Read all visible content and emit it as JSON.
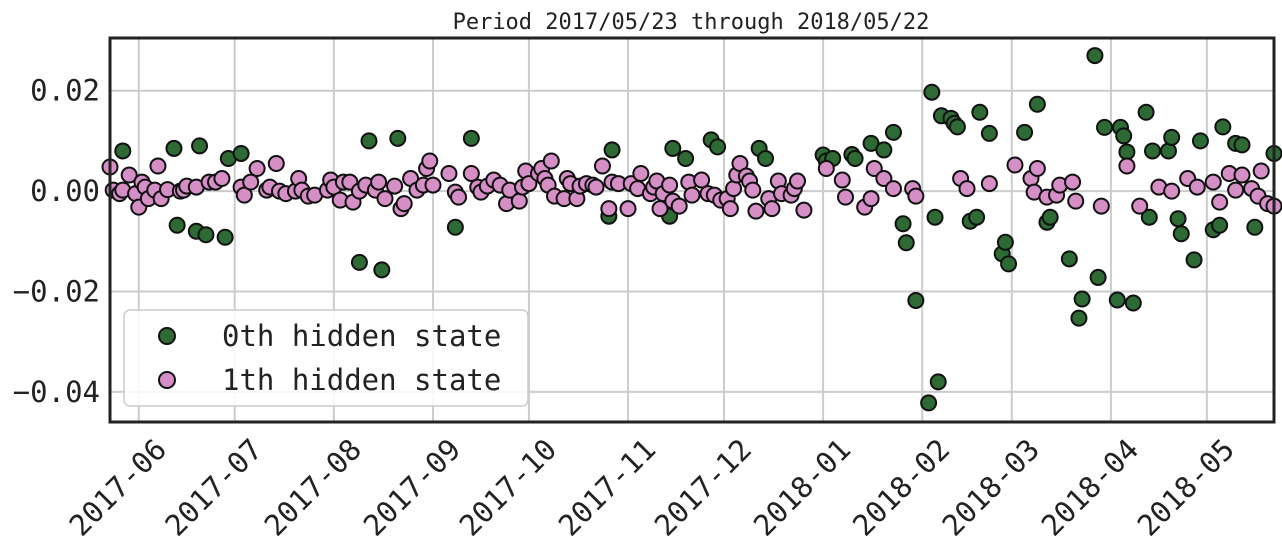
{
  "chart_data": {
    "type": "scatter",
    "title": "Period 2017/05/23 through 2018/05/22",
    "xlabel": "",
    "ylabel": "",
    "xlim": [
      "2017-05-23",
      "2018-05-22"
    ],
    "ylim": [
      -0.046,
      0.0305
    ],
    "grid": true,
    "legend_position": "lower-left",
    "x_ticks": [
      "2017-06-01",
      "2017-07-01",
      "2017-08-01",
      "2017-09-01",
      "2017-10-01",
      "2017-11-01",
      "2017-12-01",
      "2018-01-01",
      "2018-02-01",
      "2018-03-01",
      "2018-04-01",
      "2018-05-01"
    ],
    "x_tick_labels": [
      "2017-06",
      "2017-07",
      "2017-08",
      "2017-09",
      "2017-10",
      "2017-11",
      "2017-12",
      "2018-01",
      "2018-02",
      "2018-03",
      "2018-04",
      "2018-05"
    ],
    "y_ticks": [
      0.02,
      0.0,
      -0.02,
      -0.04
    ],
    "y_tick_labels": [
      "0.02",
      "0.00",
      "−0.02",
      "−0.04"
    ],
    "series": [
      {
        "name": "0th hidden state",
        "color": "#2d6a34",
        "points": [
          [
            "2017-05-27",
            0.008
          ],
          [
            "2017-06-12",
            0.0085
          ],
          [
            "2017-06-13",
            -0.0068
          ],
          [
            "2017-06-19",
            -0.008
          ],
          [
            "2017-06-20",
            0.009
          ],
          [
            "2017-06-22",
            -0.0087
          ],
          [
            "2017-06-28",
            -0.0092
          ],
          [
            "2017-06-29",
            0.0065
          ],
          [
            "2017-07-03",
            0.0075
          ],
          [
            "2017-08-09",
            -0.0142
          ],
          [
            "2017-08-12",
            0.01
          ],
          [
            "2017-08-16",
            -0.0157
          ],
          [
            "2017-08-21",
            0.0105
          ],
          [
            "2017-09-08",
            -0.0072
          ],
          [
            "2017-09-13",
            0.0105
          ],
          [
            "2017-10-26",
            -0.005
          ],
          [
            "2017-10-27",
            0.0082
          ],
          [
            "2017-11-14",
            -0.005
          ],
          [
            "2017-11-15",
            0.0085
          ],
          [
            "2017-11-19",
            0.0065
          ],
          [
            "2017-11-27",
            0.0102
          ],
          [
            "2017-11-29",
            0.0088
          ],
          [
            "2017-12-12",
            0.0085
          ],
          [
            "2017-12-14",
            0.0065
          ],
          [
            "2018-01-01",
            0.0072
          ],
          [
            "2018-01-02",
            0.006
          ],
          [
            "2018-01-04",
            0.0065
          ],
          [
            "2018-01-10",
            0.0073
          ],
          [
            "2018-01-11",
            0.0065
          ],
          [
            "2018-01-16",
            0.0095
          ],
          [
            "2018-01-20",
            0.0082
          ],
          [
            "2018-01-23",
            0.0117
          ],
          [
            "2018-01-26",
            -0.0065
          ],
          [
            "2018-01-27",
            -0.0103
          ],
          [
            "2018-01-30",
            -0.0218
          ],
          [
            "2018-02-03",
            -0.0422
          ],
          [
            "2018-02-04",
            0.0197
          ],
          [
            "2018-02-05",
            -0.0052
          ],
          [
            "2018-02-06",
            -0.038
          ],
          [
            "2018-02-07",
            0.015
          ],
          [
            "2018-02-10",
            0.0145
          ],
          [
            "2018-02-11",
            0.0135
          ],
          [
            "2018-02-12",
            0.0128
          ],
          [
            "2018-02-16",
            -0.006
          ],
          [
            "2018-02-18",
            -0.0052
          ],
          [
            "2018-02-19",
            0.0157
          ],
          [
            "2018-02-22",
            0.0115
          ],
          [
            "2018-02-26",
            -0.0125
          ],
          [
            "2018-02-27",
            -0.0102
          ],
          [
            "2018-02-28",
            -0.0145
          ],
          [
            "2018-03-05",
            0.0117
          ],
          [
            "2018-03-09",
            0.0173
          ],
          [
            "2018-03-12",
            -0.0062
          ],
          [
            "2018-03-13",
            -0.0052
          ],
          [
            "2018-03-19",
            -0.0135
          ],
          [
            "2018-03-22",
            -0.0253
          ],
          [
            "2018-03-23",
            -0.0215
          ],
          [
            "2018-03-27",
            0.027
          ],
          [
            "2018-03-28",
            -0.0172
          ],
          [
            "2018-03-30",
            0.0127
          ],
          [
            "2018-04-03",
            -0.0217
          ],
          [
            "2018-04-04",
            0.0127
          ],
          [
            "2018-04-05",
            0.011
          ],
          [
            "2018-04-06",
            0.0078
          ],
          [
            "2018-04-08",
            -0.0223
          ],
          [
            "2018-04-12",
            0.0157
          ],
          [
            "2018-04-13",
            -0.0052
          ],
          [
            "2018-04-14",
            0.008
          ],
          [
            "2018-04-19",
            0.008
          ],
          [
            "2018-04-20",
            0.0107
          ],
          [
            "2018-04-22",
            -0.0055
          ],
          [
            "2018-04-23",
            -0.0085
          ],
          [
            "2018-04-27",
            -0.0137
          ],
          [
            "2018-04-29",
            0.01
          ],
          [
            "2018-05-03",
            -0.0077
          ],
          [
            "2018-05-05",
            -0.0068
          ],
          [
            "2018-05-06",
            0.0128
          ],
          [
            "2018-05-10",
            0.0095
          ],
          [
            "2018-05-12",
            0.0092
          ],
          [
            "2018-05-16",
            -0.0072
          ],
          [
            "2018-05-22",
            0.0075
          ]
        ]
      },
      {
        "name": "1th hidden state",
        "color": "#d68fc6",
        "points": [
          [
            "2017-05-23",
            0.0048
          ],
          [
            "2017-05-24",
            0.0002
          ],
          [
            "2017-05-26",
            -0.0005
          ],
          [
            "2017-05-27",
            0.0002
          ],
          [
            "2017-05-29",
            0.0032
          ],
          [
            "2017-05-31",
            -0.0005
          ],
          [
            "2017-06-01",
            -0.0032
          ],
          [
            "2017-06-02",
            0.0018
          ],
          [
            "2017-06-03",
            0.0008
          ],
          [
            "2017-06-04",
            -0.0015
          ],
          [
            "2017-06-06",
            0.0002
          ],
          [
            "2017-06-07",
            0.005
          ],
          [
            "2017-06-08",
            -0.0015
          ],
          [
            "2017-06-10",
            0.0003
          ],
          [
            "2017-06-14",
            0.0
          ],
          [
            "2017-06-15",
            0.0002
          ],
          [
            "2017-06-16",
            0.001
          ],
          [
            "2017-06-19",
            0.0008
          ],
          [
            "2017-06-23",
            0.0018
          ],
          [
            "2017-06-25",
            0.0018
          ],
          [
            "2017-06-27",
            0.0025
          ],
          [
            "2017-07-03",
            0.0008
          ],
          [
            "2017-07-04",
            -0.0008
          ],
          [
            "2017-07-06",
            0.0018
          ],
          [
            "2017-07-08",
            0.0045
          ],
          [
            "2017-07-11",
            0.0002
          ],
          [
            "2017-07-12",
            0.0008
          ],
          [
            "2017-07-14",
            0.0055
          ],
          [
            "2017-07-15",
            0.0
          ],
          [
            "2017-07-17",
            -0.0005
          ],
          [
            "2017-07-20",
            0.0
          ],
          [
            "2017-07-21",
            0.0025
          ],
          [
            "2017-07-22",
            0.0002
          ],
          [
            "2017-07-24",
            -0.001
          ],
          [
            "2017-07-26",
            -0.0008
          ],
          [
            "2017-07-30",
            0.0002
          ],
          [
            "2017-07-31",
            0.0022
          ],
          [
            "2017-08-01",
            0.0008
          ],
          [
            "2017-08-03",
            -0.0018
          ],
          [
            "2017-08-04",
            0.0018
          ],
          [
            "2017-08-06",
            0.0018
          ],
          [
            "2017-08-07",
            -0.0022
          ],
          [
            "2017-08-09",
            0.0
          ],
          [
            "2017-08-11",
            0.0012
          ],
          [
            "2017-08-14",
            0.0002
          ],
          [
            "2017-08-15",
            0.0018
          ],
          [
            "2017-08-17",
            -0.0015
          ],
          [
            "2017-08-20",
            0.001
          ],
          [
            "2017-08-22",
            -0.0035
          ],
          [
            "2017-08-23",
            -0.0025
          ],
          [
            "2017-08-25",
            0.0025
          ],
          [
            "2017-08-27",
            0.0002
          ],
          [
            "2017-08-29",
            0.0012
          ],
          [
            "2017-08-30",
            0.0045
          ],
          [
            "2017-08-31",
            0.006
          ],
          [
            "2017-09-01",
            0.0012
          ],
          [
            "2017-09-06",
            0.0035
          ],
          [
            "2017-09-08",
            -0.0002
          ],
          [
            "2017-09-09",
            -0.0012
          ],
          [
            "2017-09-13",
            0.0035
          ],
          [
            "2017-09-15",
            0.0008
          ],
          [
            "2017-09-16",
            -0.0002
          ],
          [
            "2017-09-18",
            0.001
          ],
          [
            "2017-09-20",
            0.0022
          ],
          [
            "2017-09-22",
            0.0012
          ],
          [
            "2017-09-24",
            -0.0025
          ],
          [
            "2017-09-25",
            0.0002
          ],
          [
            "2017-09-28",
            -0.002
          ],
          [
            "2017-09-29",
            0.0008
          ],
          [
            "2017-09-30",
            0.004
          ],
          [
            "2017-10-01",
            0.0015
          ],
          [
            "2017-10-04",
            0.0035
          ],
          [
            "2017-10-05",
            0.0045
          ],
          [
            "2017-10-06",
            0.0025
          ],
          [
            "2017-10-07",
            0.0012
          ],
          [
            "2017-10-08",
            0.006
          ],
          [
            "2017-10-09",
            -0.001
          ],
          [
            "2017-10-12",
            -0.0015
          ],
          [
            "2017-10-13",
            0.0025
          ],
          [
            "2017-10-14",
            0.0015
          ],
          [
            "2017-10-16",
            -0.0015
          ],
          [
            "2017-10-17",
            0.001
          ],
          [
            "2017-10-19",
            0.0015
          ],
          [
            "2017-10-21",
            0.0012
          ],
          [
            "2017-10-22",
            0.0008
          ],
          [
            "2017-10-24",
            0.005
          ],
          [
            "2017-10-26",
            -0.0035
          ],
          [
            "2017-10-27",
            0.0018
          ],
          [
            "2017-10-29",
            0.0015
          ],
          [
            "2017-11-01",
            -0.0035
          ],
          [
            "2017-11-02",
            0.0015
          ],
          [
            "2017-11-04",
            0.0005
          ],
          [
            "2017-11-05",
            0.0035
          ],
          [
            "2017-11-08",
            -0.0005
          ],
          [
            "2017-11-09",
            0.0008
          ],
          [
            "2017-11-10",
            0.002
          ],
          [
            "2017-11-11",
            -0.0035
          ],
          [
            "2017-11-12",
            -0.0005
          ],
          [
            "2017-11-14",
            0.0012
          ],
          [
            "2017-11-15",
            -0.002
          ],
          [
            "2017-11-17",
            -0.003
          ],
          [
            "2017-11-20",
            0.0018
          ],
          [
            "2017-11-21",
            -0.0008
          ],
          [
            "2017-11-24",
            0.0022
          ],
          [
            "2017-11-26",
            -0.0005
          ],
          [
            "2017-11-28",
            -0.0008
          ],
          [
            "2017-11-30",
            -0.0018
          ],
          [
            "2017-12-02",
            -0.0015
          ],
          [
            "2017-12-03",
            -0.0035
          ],
          [
            "2017-12-04",
            0.0005
          ],
          [
            "2017-12-05",
            0.0032
          ],
          [
            "2017-12-06",
            0.0055
          ],
          [
            "2017-12-08",
            0.003
          ],
          [
            "2017-12-09",
            0.002
          ],
          [
            "2017-12-10",
            0.0002
          ],
          [
            "2017-12-11",
            -0.004
          ],
          [
            "2017-12-15",
            -0.0015
          ],
          [
            "2017-12-16",
            -0.0035
          ],
          [
            "2017-12-18",
            0.002
          ],
          [
            "2017-12-19",
            -0.0005
          ],
          [
            "2017-12-22",
            -0.0008
          ],
          [
            "2017-12-23",
            0.0005
          ],
          [
            "2017-12-24",
            0.002
          ],
          [
            "2017-12-26",
            -0.0038
          ],
          [
            "2018-01-02",
            0.0045
          ],
          [
            "2018-01-07",
            0.0022
          ],
          [
            "2018-01-08",
            -0.0012
          ],
          [
            "2018-01-14",
            -0.0032
          ],
          [
            "2018-01-16",
            -0.0015
          ],
          [
            "2018-01-17",
            0.0045
          ],
          [
            "2018-01-20",
            0.0025
          ],
          [
            "2018-01-23",
            0.0005
          ],
          [
            "2018-01-29",
            0.0005
          ],
          [
            "2018-01-30",
            -0.001
          ],
          [
            "2018-02-13",
            0.0025
          ],
          [
            "2018-02-15",
            0.0005
          ],
          [
            "2018-02-22",
            0.0015
          ],
          [
            "2018-03-02",
            0.0052
          ],
          [
            "2018-03-07",
            0.0025
          ],
          [
            "2018-03-08",
            -0.0002
          ],
          [
            "2018-03-09",
            0.0045
          ],
          [
            "2018-03-12",
            -0.0012
          ],
          [
            "2018-03-15",
            -0.0008
          ],
          [
            "2018-03-16",
            0.0012
          ],
          [
            "2018-03-20",
            0.0018
          ],
          [
            "2018-03-21",
            -0.002
          ],
          [
            "2018-03-29",
            -0.003
          ],
          [
            "2018-04-06",
            0.005
          ],
          [
            "2018-04-10",
            -0.003
          ],
          [
            "2018-04-16",
            0.0008
          ],
          [
            "2018-04-20",
            0.0
          ],
          [
            "2018-04-25",
            0.0025
          ],
          [
            "2018-04-28",
            0.0008
          ],
          [
            "2018-05-03",
            0.0018
          ],
          [
            "2018-05-05",
            -0.0022
          ],
          [
            "2018-05-08",
            0.0035
          ],
          [
            "2018-05-10",
            0.0002
          ],
          [
            "2018-05-12",
            0.0032
          ],
          [
            "2018-05-15",
            0.0005
          ],
          [
            "2018-05-17",
            -0.001
          ],
          [
            "2018-05-18",
            0.004
          ],
          [
            "2018-05-20",
            -0.0025
          ],
          [
            "2018-05-22",
            -0.003
          ]
        ]
      }
    ]
  }
}
